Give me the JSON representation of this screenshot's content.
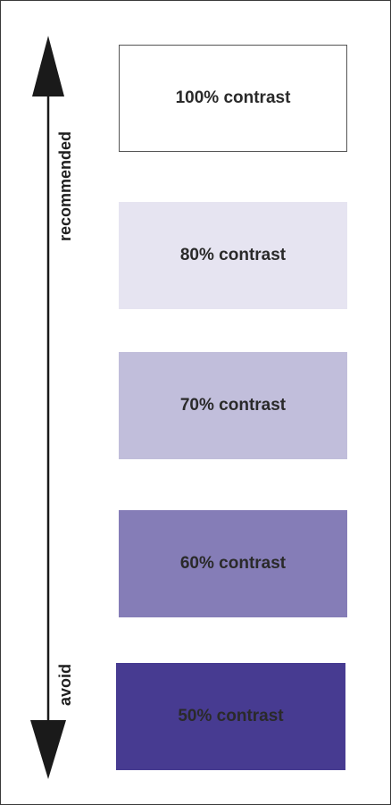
{
  "axis": {
    "top_label": "recommended",
    "bottom_label": "avoid"
  },
  "swatches": [
    {
      "label": "100% contrast",
      "color": "#ffffff"
    },
    {
      "label": "80% contrast",
      "color": "#e6e4f1"
    },
    {
      "label": "70% contrast",
      "color": "#c1bedb"
    },
    {
      "label": "60% contrast",
      "color": "#857db7"
    },
    {
      "label": "50% contrast",
      "color": "#473b91"
    }
  ],
  "colors": {
    "arrow": "#1a1a1a",
    "text": "#2a2a2a"
  }
}
